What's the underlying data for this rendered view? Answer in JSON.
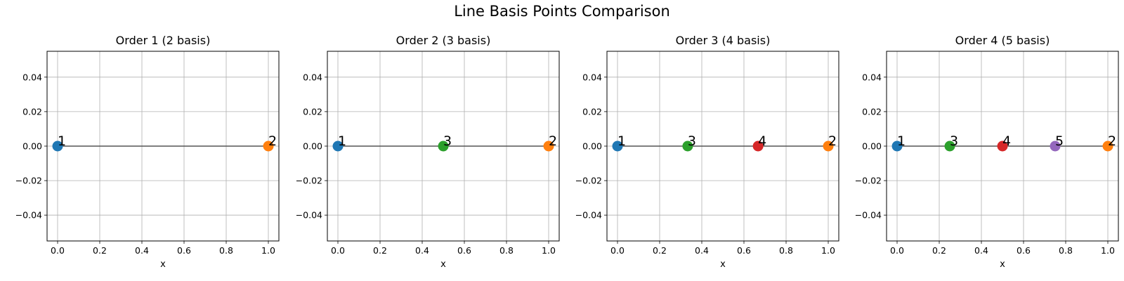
{
  "figure": {
    "suptitle": "Line Basis Points Comparison"
  },
  "chart_data": [
    {
      "type": "scatter",
      "title": "Order 1 (2 basis)",
      "xlabel": "x",
      "ylabel": "",
      "xlim": [
        -0.05,
        1.05
      ],
      "ylim": [
        -0.055,
        0.055
      ],
      "xticks": [
        "0.0",
        "0.2",
        "0.4",
        "0.6",
        "0.8",
        "1.0"
      ],
      "yticks": [
        "0.04",
        "0.02",
        "0.00",
        "−0.02",
        "−0.04"
      ],
      "grid": true,
      "line": {
        "x": [
          0,
          1
        ],
        "y": [
          0,
          0
        ],
        "color": "#555555"
      },
      "points": [
        {
          "label": "1",
          "x": 0.0,
          "y": 0,
          "color": "#1f77b4"
        },
        {
          "label": "2",
          "x": 1.0,
          "y": 0,
          "color": "#ff7f0e"
        }
      ]
    },
    {
      "type": "scatter",
      "title": "Order 2 (3 basis)",
      "xlabel": "x",
      "ylabel": "",
      "xlim": [
        -0.05,
        1.05
      ],
      "ylim": [
        -0.055,
        0.055
      ],
      "xticks": [
        "0.0",
        "0.2",
        "0.4",
        "0.6",
        "0.8",
        "1.0"
      ],
      "yticks": [
        "0.04",
        "0.02",
        "0.00",
        "−0.02",
        "−0.04"
      ],
      "grid": true,
      "line": {
        "x": [
          0,
          1
        ],
        "y": [
          0,
          0
        ],
        "color": "#555555"
      },
      "points": [
        {
          "label": "1",
          "x": 0.0,
          "y": 0,
          "color": "#1f77b4"
        },
        {
          "label": "3",
          "x": 0.5,
          "y": 0,
          "color": "#2ca02c"
        },
        {
          "label": "2",
          "x": 1.0,
          "y": 0,
          "color": "#ff7f0e"
        }
      ]
    },
    {
      "type": "scatter",
      "title": "Order 3 (4 basis)",
      "xlabel": "x",
      "ylabel": "",
      "xlim": [
        -0.05,
        1.05
      ],
      "ylim": [
        -0.055,
        0.055
      ],
      "xticks": [
        "0.0",
        "0.2",
        "0.4",
        "0.6",
        "0.8",
        "1.0"
      ],
      "yticks": [
        "0.04",
        "0.02",
        "0.00",
        "−0.02",
        "−0.04"
      ],
      "grid": true,
      "line": {
        "x": [
          0,
          1
        ],
        "y": [
          0,
          0
        ],
        "color": "#555555"
      },
      "points": [
        {
          "label": "1",
          "x": 0.0,
          "y": 0,
          "color": "#1f77b4"
        },
        {
          "label": "3",
          "x": 0.333,
          "y": 0,
          "color": "#2ca02c"
        },
        {
          "label": "4",
          "x": 0.667,
          "y": 0,
          "color": "#d62728"
        },
        {
          "label": "2",
          "x": 1.0,
          "y": 0,
          "color": "#ff7f0e"
        }
      ]
    },
    {
      "type": "scatter",
      "title": "Order 4 (5 basis)",
      "xlabel": "x",
      "ylabel": "",
      "xlim": [
        -0.05,
        1.05
      ],
      "ylim": [
        -0.055,
        0.055
      ],
      "xticks": [
        "0.0",
        "0.2",
        "0.4",
        "0.6",
        "0.8",
        "1.0"
      ],
      "yticks": [
        "0.04",
        "0.02",
        "0.00",
        "−0.02",
        "−0.04"
      ],
      "grid": true,
      "line": {
        "x": [
          0,
          1
        ],
        "y": [
          0,
          0
        ],
        "color": "#555555"
      },
      "points": [
        {
          "label": "1",
          "x": 0.0,
          "y": 0,
          "color": "#1f77b4"
        },
        {
          "label": "3",
          "x": 0.25,
          "y": 0,
          "color": "#2ca02c"
        },
        {
          "label": "4",
          "x": 0.5,
          "y": 0,
          "color": "#d62728"
        },
        {
          "label": "5",
          "x": 0.75,
          "y": 0,
          "color": "#9467bd"
        },
        {
          "label": "2",
          "x": 1.0,
          "y": 0,
          "color": "#ff7f0e"
        }
      ]
    }
  ]
}
